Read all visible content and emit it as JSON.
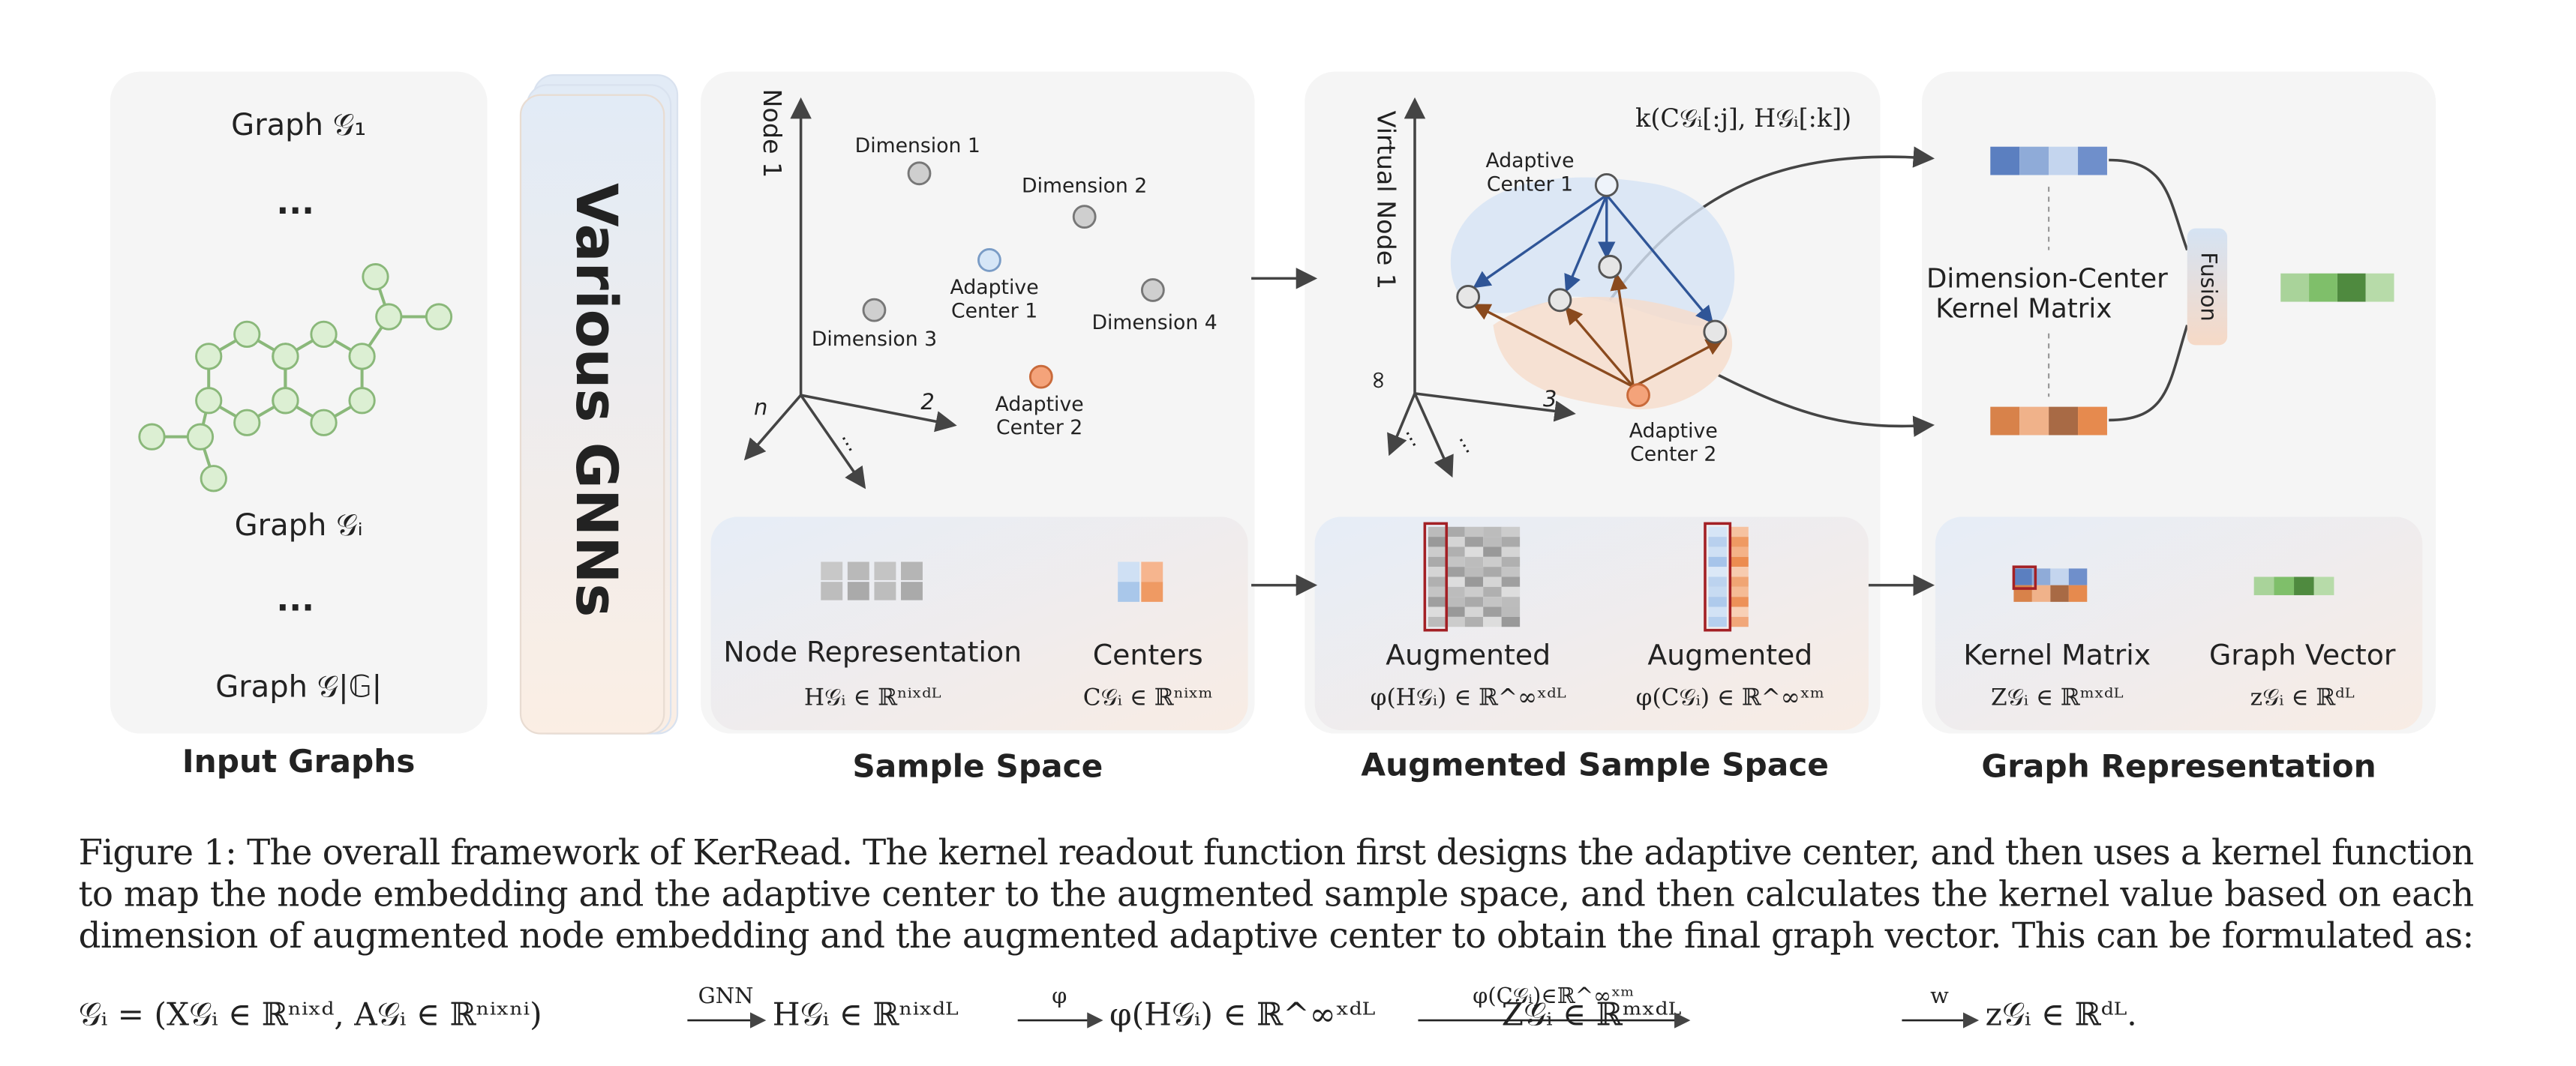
{
  "figure": {
    "input_graphs": {
      "title": "Input Graphs",
      "graph_1": "Graph 𝒢₁",
      "dots_top": "···",
      "graph_i": "Graph 𝒢ᵢ",
      "dots_bottom": "···",
      "graph_last": "Graph 𝒢|𝔾|"
    },
    "gnn": {
      "label": "Various GNNs"
    },
    "sample_space": {
      "title": "Sample Space",
      "axis_up": "Node 1",
      "axis_left": "n",
      "axis_right": "2",
      "axis_down": "...",
      "dimension_1": "Dimension 1",
      "dimension_2": "Dimension 2",
      "dimension_3": "Dimension 3",
      "dimension_4": "Dimension 4",
      "adaptive_center_1": [
        "Adaptive",
        "Center 1"
      ],
      "adaptive_center_2": [
        "Adaptive",
        "Center 2"
      ],
      "node_representation": {
        "label": "Node Representation",
        "formula": "H𝒢ᵢ ∈ ℝⁿⁱˣᵈᴸ"
      },
      "centers": {
        "label": "Centers",
        "formula": "C𝒢ᵢ ∈ ℝⁿⁱˣᵐ"
      }
    },
    "augmented_space": {
      "title": "Augmented Sample Space",
      "axis_up": "Virtual Node 1",
      "axis_left": "∞",
      "axis_right": "3",
      "axis_down_1": "...",
      "axis_down_2": "...",
      "kernel": "k(C𝒢ᵢ[:j], H𝒢ᵢ[:k])",
      "adaptive_center_1": [
        "Adaptive",
        "Center 1"
      ],
      "adaptive_center_2": [
        "Adaptive",
        "Center 2"
      ],
      "augmented_nodes": {
        "label": "Augmented",
        "formula": "φ(H𝒢ᵢ) ∈ ℝ^∞ˣᵈᴸ"
      },
      "augmented_centers": {
        "label": "Augmented",
        "formula": "φ(C𝒢ᵢ) ∈ ℝ^∞ˣᵐ"
      }
    },
    "graph_representation": {
      "title": "Graph Representation",
      "kernel_label": [
        "Dimension-Center",
        "Kernel Matrix"
      ],
      "fusion": "Fusion",
      "kernel_matrix": {
        "label": "Kernel Matrix",
        "formula": "Z𝒢ᵢ ∈ ℝᵐˣᵈᴸ"
      },
      "graph_vector": {
        "label": "Graph Vector",
        "formula": "z𝒢ᵢ ∈ ℝᵈᴸ"
      }
    }
  },
  "caption": {
    "lines": [
      "Figure 1: The overall framework of KerRead. The kernel readout function first designs the adaptive center, and then uses a kernel function",
      "to map the node embedding and the adaptive center to the augmented sample space, and then calculates the kernel value based on each",
      "dimension of augmented node embedding and the augmented adaptive center to obtain the final graph vector. This can be formulated as:"
    ]
  },
  "formula": {
    "parts": [
      "𝒢ᵢ = (X𝒢ᵢ ∈ ℝⁿⁱˣᵈ, A𝒢ᵢ ∈ ℝⁿⁱˣⁿⁱ)",
      "H𝒢ᵢ ∈ ℝⁿⁱˣᵈᴸ",
      "φ(H𝒢ᵢ) ∈ ℝ^∞ˣᵈᴸ",
      "Z𝒢ᵢ ∈ ℝᵐˣᵈᴸ",
      "z𝒢ᵢ ∈ ℝᵈᴸ."
    ],
    "arrows": [
      "GNN",
      "φ",
      "φ(C𝒢ᵢ)∈ℝ^∞ˣᵐ",
      "w"
    ]
  }
}
